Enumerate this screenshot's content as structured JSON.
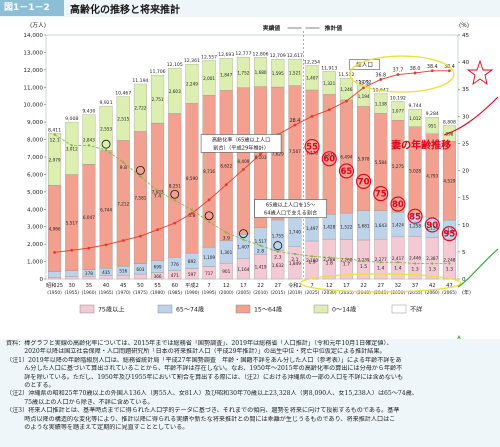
{
  "header": {
    "figure_tag": "図1－1－2",
    "title": "高齢化の推移と将来推計"
  },
  "chart_data": {
    "type": "bar",
    "y_left_label": "(万人)",
    "y_right_label": "(%)",
    "y_left_ticks": [
      "0",
      "1,000",
      "2,000",
      "3,000",
      "4,000",
      "5,000",
      "6,000",
      "7,000",
      "8,000",
      "9,000",
      "10,000",
      "11,000",
      "12,000",
      "13,000",
      "14,000"
    ],
    "y_right_ticks": [
      "0",
      "5",
      "10",
      "15",
      "20",
      "25",
      "30",
      "35",
      "40",
      "45"
    ],
    "ylim_left": [
      0,
      14000
    ],
    "ylim_right": [
      0,
      45
    ],
    "x_label_unit": "(年)",
    "categories": [
      "昭和25",
      "30",
      "35",
      "40",
      "45",
      "50",
      "55",
      "60",
      "平成2",
      "7",
      "12",
      "17",
      "22",
      "27",
      "令和2",
      "7",
      "12",
      "17",
      "22",
      "27",
      "32",
      "37",
      "42",
      "47"
    ],
    "years": [
      "(1950)",
      "(1955)",
      "(1960)",
      "(1965)",
      "(1970)",
      "(1975)",
      "(1980)",
      "(1985)",
      "(1990)",
      "(1995)",
      "(2000)",
      "(2005)",
      "(2010)",
      "(2015)",
      "(2019)",
      "(2025)",
      "(2030)",
      "(2035)",
      "(2040)",
      "(2045)",
      "(2050)",
      "(2055)",
      "(2060)",
      "(2065)"
    ],
    "series": [
      {
        "name": "75歳以上",
        "color": "#f3c9d4",
        "values": [
          106,
          139,
          163,
          189,
          224,
          284,
          366,
          471,
          597,
          717,
          901,
          1164,
          1419,
          1632,
          1849,
          2180,
          2288,
          2260,
          2239,
          2277,
          2417,
          2446,
          2387,
          2248
        ]
      },
      {
        "name": "65～74歳",
        "color": "#bcd3ea",
        "values": [
          309,
          336,
          378,
          435,
          516,
          603,
          699,
          776,
          892,
          1109,
          1301,
          1407,
          1517,
          1755,
          1740,
          1497,
          1428,
          1522,
          1681,
          1643,
          1424,
          1258,
          1154,
          1133
        ]
      },
      {
        "name": "15～64歳",
        "color": "#f2a08f",
        "values": [
          4966,
          5517,
          6047,
          6744,
          7212,
          7581,
          7883,
          8251,
          8590,
          8716,
          8622,
          8409,
          8103,
          7629,
          7507,
          7170,
          6875,
          6494,
          5978,
          5584,
          5275,
          5028,
          4793,
          4529
        ]
      },
      {
        "name": "0～14歳",
        "color": "#dcefb0",
        "values": [
          2979,
          3012,
          2843,
          2553,
          2515,
          2722,
          2751,
          2603,
          2249,
          2001,
          1847,
          1752,
          1680,
          1595,
          1521,
          1407,
          1321,
          1246,
          1194,
          1138,
          1077,
          1012,
          951,
          898
        ]
      },
      {
        "name": "不詳",
        "color": "#ffffff",
        "values": [
          0,
          0,
          0,
          0,
          0,
          0,
          0,
          0,
          0,
          0,
          0,
          0,
          0,
          0,
          0,
          0,
          0,
          0,
          0,
          0,
          0,
          0,
          0,
          0
        ]
      }
    ],
    "totals": [
      "8,411",
      "9,008",
      "9,430",
      "9,921",
      "10,467",
      "11,194",
      "11,706",
      "12,105",
      "12,361",
      "12,557",
      "12,693",
      "12,777",
      "12,806",
      "12,709",
      "12,617",
      "12,254",
      "11,913",
      "11,522",
      "11,092",
      "10,642",
      "10,192",
      "9,744",
      "9,284",
      "8,808"
    ],
    "aging_rate": {
      "name": "高齢化率（65歳以上人口割合）",
      "values": [
        4.9,
        5.3,
        5.7,
        6.3,
        7.1,
        7.9,
        9.1,
        10.3,
        12.1,
        14.6,
        17.4,
        20.2,
        23.0,
        26.6,
        28.4,
        30.0,
        31.2,
        32.8,
        35.3,
        36.8,
        37.7,
        38.0,
        38.4,
        38.4
      ],
      "labels": [
        "",
        "",
        "",
        "",
        "",
        "",
        "",
        "",
        "",
        "",
        "",
        "",
        "",
        "",
        "28.4",
        "",
        "",
        "",
        "35.3",
        "36.8",
        "37.7",
        "38.0",
        "38.4",
        "38.4"
      ]
    },
    "support_ratio": {
      "name": "65歳以上人口を15～64歳人口で支える割合",
      "values": [
        12.1,
        11.2,
        11.2,
        10.8,
        9.8,
        8.6,
        7.4,
        6.6,
        5.8,
        4.8,
        3.9,
        3.3,
        2.8,
        2.3,
        2.1,
        1.9,
        1.8,
        1.7,
        1.5,
        1.4,
        1.4,
        1.3,
        1.3,
        1.3
      ],
      "labels": [
        "12.1",
        "",
        "",
        "",
        "9.8",
        "",
        "7.4",
        "",
        "5.8",
        "",
        "3.9",
        "",
        "2.8",
        "2.3",
        "2.1",
        "1.9",
        "1.8",
        "1.7",
        "1.5",
        "1.4",
        "1.4",
        "1.3",
        "1.3",
        "1.3"
      ]
    },
    "annotations": {
      "actual": "実績値",
      "projection": "推計値",
      "total_label": "総人口",
      "aging_label_1": "高齢化率（65歳以上人口",
      "aging_label_2": "割合）（平成29年推計）",
      "support_label_1": "65歳以上人口を15～",
      "support_label_2": "64歳人口で支える割合",
      "ages": [
        "55",
        "60",
        "65",
        "70",
        "75",
        "80",
        "85",
        "90",
        "95"
      ],
      "red_text": "妻の年齢推移"
    }
  },
  "notes": [
    "資料：棒グラフと実線の高齢化率については、2015年までは総務省「国勢調査」、2019年は総務省「人口推計」（令和元年10月1日確定値）、",
    "　　　2020年以降は国立社会保障・人口問題研究所「日本の将来推計人口（平成29年推計）」の出生中位・死亡中位仮定による推計結果。",
    "（注1）2019年以降の年齢階級別人口は、総務省統計局「平成27年国勢調査　年齢・国籍不詳をあん分した人口（参考表）」による年齢不詳をあ",
    "　　　ん分した人口に基づいて算出されていることから、年齢不詳は存在しない。なお、1950年～2015年の高齢化率の算出には分母から年齢不",
    "　　　詳を除いている。ただし、1950年及び1955年において割合を算出する際には、（注2）における沖縄県の一部の人口を不詳には含めないも",
    "　　　のとする。",
    "（注2）沖縄県の昭和25年70歳以上の外国人136人（男55人、女81人）及び昭和30年70歳以上23,328人（男8,090人、女15,238人）は65～74歳、",
    "　　　75歳以上の人口から除き、不詳に含めている。",
    "（注3）将来人口推計とは、基準時点までに得られた人口学的データに基づき、それまでの傾向、趨勢を将来に向けて投影するものである。基準",
    "　　　時点以降の構造的な変化等により、推計以降に得られる実績や新たな将来推計との間には乖離が生じうるものであり、将来推計人口はこ",
    "　　　のような実績等を踏まえて定期的に見直すこととしている。"
  ]
}
